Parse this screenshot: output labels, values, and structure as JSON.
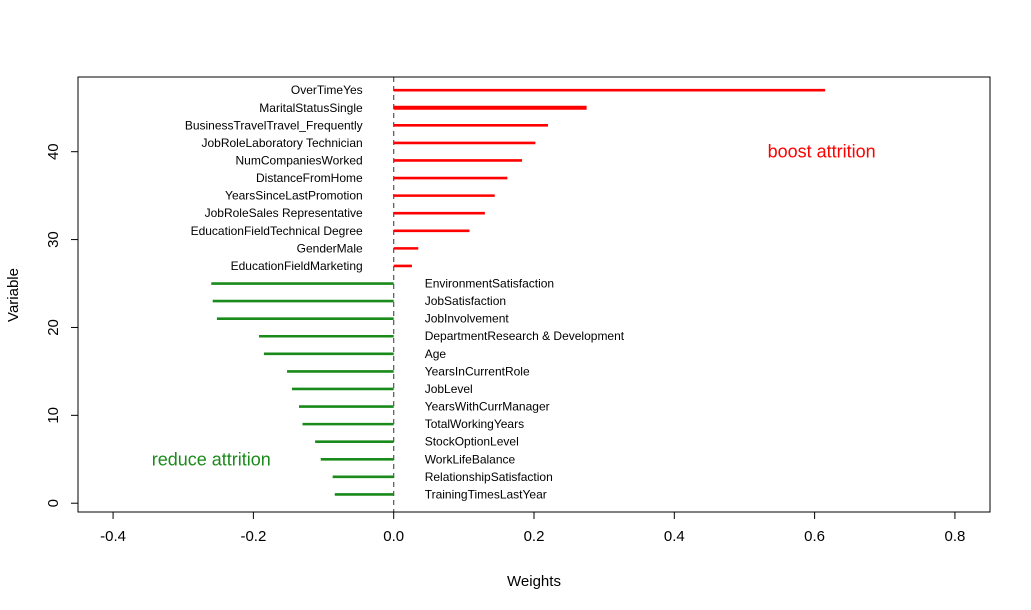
{
  "chart_data": {
    "type": "bar",
    "orientation": "horizontal-segments",
    "xlabel": "Weights",
    "ylabel": "Variable",
    "xlim": [
      -0.45,
      0.85
    ],
    "ylim": [
      -1,
      48.5
    ],
    "xticks": [
      {
        "value": -0.4,
        "label": "-0.4"
      },
      {
        "value": -0.2,
        "label": "-0.2"
      },
      {
        "value": 0.0,
        "label": "0.0"
      },
      {
        "value": 0.2,
        "label": "0.2"
      },
      {
        "value": 0.4,
        "label": "0.4"
      },
      {
        "value": 0.6,
        "label": "0.6"
      },
      {
        "value": 0.8,
        "label": "0.8"
      }
    ],
    "yticks": [
      {
        "value": 0,
        "label": "0"
      },
      {
        "value": 10,
        "label": "10"
      },
      {
        "value": 20,
        "label": "20"
      },
      {
        "value": 30,
        "label": "30"
      },
      {
        "value": 40,
        "label": "40"
      }
    ],
    "reference_line": {
      "x": 0,
      "style": "dashed"
    },
    "annotations": [
      {
        "text": "boost attrition",
        "x": 0.61,
        "y": 40,
        "color": "#ff0000"
      },
      {
        "text": "reduce attrition",
        "x": -0.26,
        "y": 5,
        "color": "#1a8a1a"
      }
    ],
    "series": [
      {
        "color": "#ff0000",
        "label_side": "left",
        "points": [
          {
            "label": "OverTimeYes",
            "y": 47,
            "value": 0.615
          },
          {
            "label": "MaritalStatusSingle",
            "y": 45,
            "value": 0.275,
            "bold": true
          },
          {
            "label": "BusinessTravelTravel_Frequently",
            "y": 43,
            "value": 0.22
          },
          {
            "label": "JobRoleLaboratory Technician",
            "y": 41,
            "value": 0.202
          },
          {
            "label": "NumCompaniesWorked",
            "y": 39,
            "value": 0.183
          },
          {
            "label": "DistanceFromHome",
            "y": 37,
            "value": 0.162
          },
          {
            "label": "YearsSinceLastPromotion",
            "y": 35,
            "value": 0.144
          },
          {
            "label": "JobRoleSales Representative",
            "y": 33,
            "value": 0.13
          },
          {
            "label": "EducationFieldTechnical Degree",
            "y": 31,
            "value": 0.108
          },
          {
            "label": "GenderMale",
            "y": 29,
            "value": 0.035
          },
          {
            "label": "EducationFieldMarketing",
            "y": 27,
            "value": 0.026
          }
        ]
      },
      {
        "color": "#1a8a1a",
        "label_side": "right",
        "points": [
          {
            "label": "EnvironmentSatisfaction",
            "y": 25,
            "value": -0.26
          },
          {
            "label": "JobSatisfaction",
            "y": 23,
            "value": -0.258
          },
          {
            "label": "JobInvolvement",
            "y": 21,
            "value": -0.252
          },
          {
            "label": "DepartmentResearch & Development",
            "y": 19,
            "value": -0.192
          },
          {
            "label": "Age",
            "y": 17,
            "value": -0.185
          },
          {
            "label": "YearsInCurrentRole",
            "y": 15,
            "value": -0.152
          },
          {
            "label": "JobLevel",
            "y": 13,
            "value": -0.145
          },
          {
            "label": "YearsWithCurrManager",
            "y": 11,
            "value": -0.135
          },
          {
            "label": "TotalWorkingYears",
            "y": 9,
            "value": -0.13
          },
          {
            "label": "StockOptionLevel",
            "y": 7,
            "value": -0.112
          },
          {
            "label": "WorkLifeBalance",
            "y": 5,
            "value": -0.104
          },
          {
            "label": "RelationshipSatisfaction",
            "y": 3,
            "value": -0.087
          },
          {
            "label": "TrainingTimesLastYear",
            "y": 1,
            "value": -0.084
          }
        ]
      }
    ]
  }
}
